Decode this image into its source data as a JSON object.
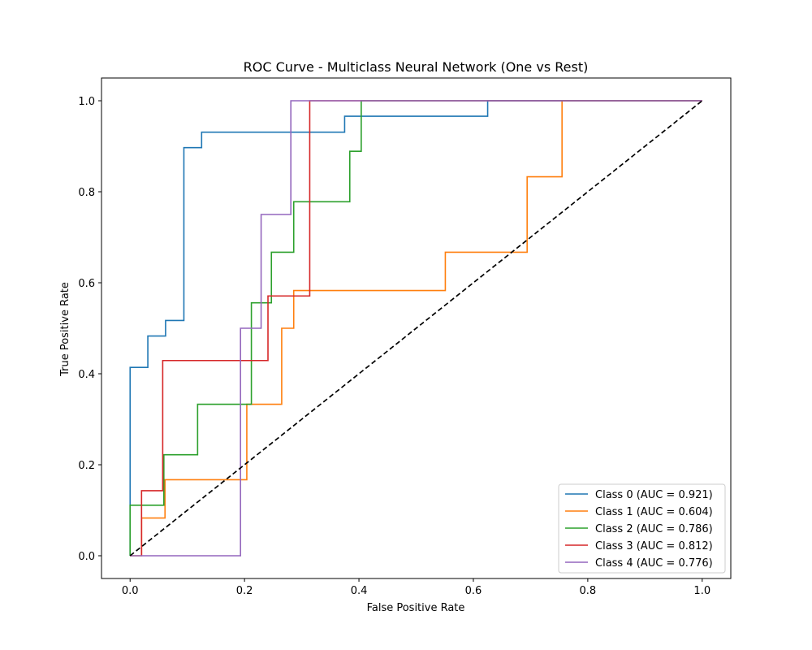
{
  "chart_data": {
    "type": "line",
    "title": "ROC Curve - Multiclass Neural Network (One vs Rest)",
    "xlabel": "False Positive Rate",
    "ylabel": "True Positive Rate",
    "xlim": [
      -0.05,
      1.05
    ],
    "ylim": [
      -0.05,
      1.05
    ],
    "xticks": [
      0.0,
      0.2,
      0.4,
      0.6,
      0.8,
      1.0
    ],
    "yticks": [
      0.0,
      0.2,
      0.4,
      0.6,
      0.8,
      1.0
    ],
    "xtick_labels": [
      "0.0",
      "0.2",
      "0.4",
      "0.6",
      "0.8",
      "1.0"
    ],
    "ytick_labels": [
      "0.0",
      "0.2",
      "0.4",
      "0.6",
      "0.8",
      "1.0"
    ],
    "grid": false,
    "legend_position": "lower-right",
    "diagonal": {
      "x": [
        0,
        1
      ],
      "y": [
        0,
        1
      ],
      "color": "#000000",
      "style": "dashed"
    },
    "series": [
      {
        "name": "Class 0 (AUC = 0.921)",
        "color": "#1f77b4",
        "x": [
          0,
          0,
          0.031,
          0.031,
          0.062,
          0.062,
          0.094,
          0.094,
          0.125,
          0.125,
          0.375,
          0.375,
          0.625,
          0.625,
          1.0
        ],
        "y": [
          0,
          0.414,
          0.414,
          0.483,
          0.483,
          0.517,
          0.517,
          0.897,
          0.897,
          0.931,
          0.931,
          0.966,
          0.966,
          1.0,
          1.0
        ]
      },
      {
        "name": "Class 1 (AUC = 0.604)",
        "color": "#ff7f0e",
        "x": [
          0,
          0.02,
          0.02,
          0.061,
          0.061,
          0.204,
          0.204,
          0.265,
          0.265,
          0.286,
          0.286,
          0.551,
          0.551,
          0.694,
          0.694,
          0.755,
          0.755,
          1.0
        ],
        "y": [
          0,
          0,
          0.083,
          0.083,
          0.167,
          0.167,
          0.333,
          0.333,
          0.5,
          0.5,
          0.583,
          0.583,
          0.667,
          0.667,
          0.833,
          0.833,
          1.0,
          1.0
        ],
        "first_point_y": 0
      },
      {
        "name": "Class 2 (AUC = 0.786)",
        "color": "#2ca02c",
        "x": [
          0,
          0,
          0.059,
          0.059,
          0.118,
          0.118,
          0.212,
          0.212,
          0.247,
          0.247,
          0.286,
          0.286,
          0.384,
          0.384,
          0.404,
          0.404,
          1.0
        ],
        "y": [
          0,
          0.111,
          0.111,
          0.222,
          0.222,
          0.333,
          0.333,
          0.556,
          0.556,
          0.667,
          0.667,
          0.778,
          0.778,
          0.889,
          0.889,
          1.0,
          1.0
        ]
      },
      {
        "name": "Class 3 (AUC = 0.812)",
        "color": "#d62728",
        "x": [
          0.02,
          0.02,
          0.057,
          0.057,
          0.241,
          0.241,
          0.314,
          0.314,
          1.0
        ],
        "y": [
          0,
          0.143,
          0.143,
          0.429,
          0.429,
          0.571,
          0.571,
          1.0,
          1.0
        ]
      },
      {
        "name": "Class 4 (AUC = 0.776)",
        "color": "#9467bd",
        "x": [
          0,
          0.193,
          0.193,
          0.229,
          0.229,
          0.281,
          0.281,
          1.0
        ],
        "y": [
          0,
          0,
          0.5,
          0.5,
          0.75,
          0.75,
          1.0,
          1.0
        ]
      }
    ]
  }
}
